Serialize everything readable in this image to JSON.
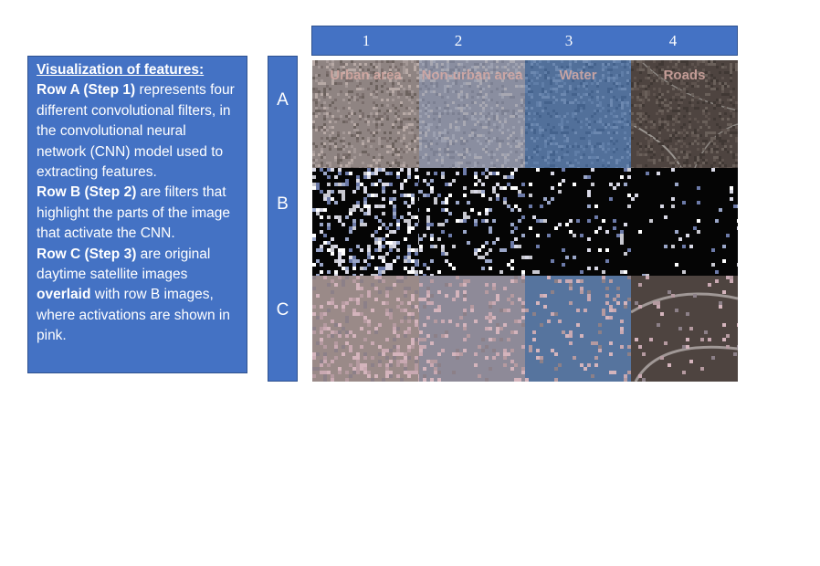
{
  "columns": [
    "1",
    "2",
    "3",
    "4"
  ],
  "rows": [
    "A",
    "B",
    "C"
  ],
  "tiles": [
    {
      "title": "Urban area"
    },
    {
      "title": "Non-urban area"
    },
    {
      "title": "Water"
    },
    {
      "title": "Roads"
    }
  ],
  "info": {
    "title": "Visualization of features:",
    "row_a_label": "Row A (Step 1)",
    "row_a_text": " represents four different convolutional filters, in the convolutional neural network (CNN) model used to extracting features.",
    "row_b_label": "Row B (Step 2)",
    "row_b_text": " are filters that highlight the parts of the image that activate the CNN.",
    "row_c_label": "Row C (Step 3)",
    "row_c_text": " are original daytime satellite images ",
    "row_c_overlaid": "overlaid",
    "row_c_text2": " with row B images, where activations are shown in pink."
  },
  "colors": {
    "panel_blue": "#4472c4",
    "panel_border": "#2f528f",
    "urban": "#8f8482",
    "non_urban": "#8a8ea0",
    "water": "#52709a",
    "roads": "#4e4440",
    "activation_bg": "#050505",
    "activation_pink": "#e8b8c8"
  }
}
